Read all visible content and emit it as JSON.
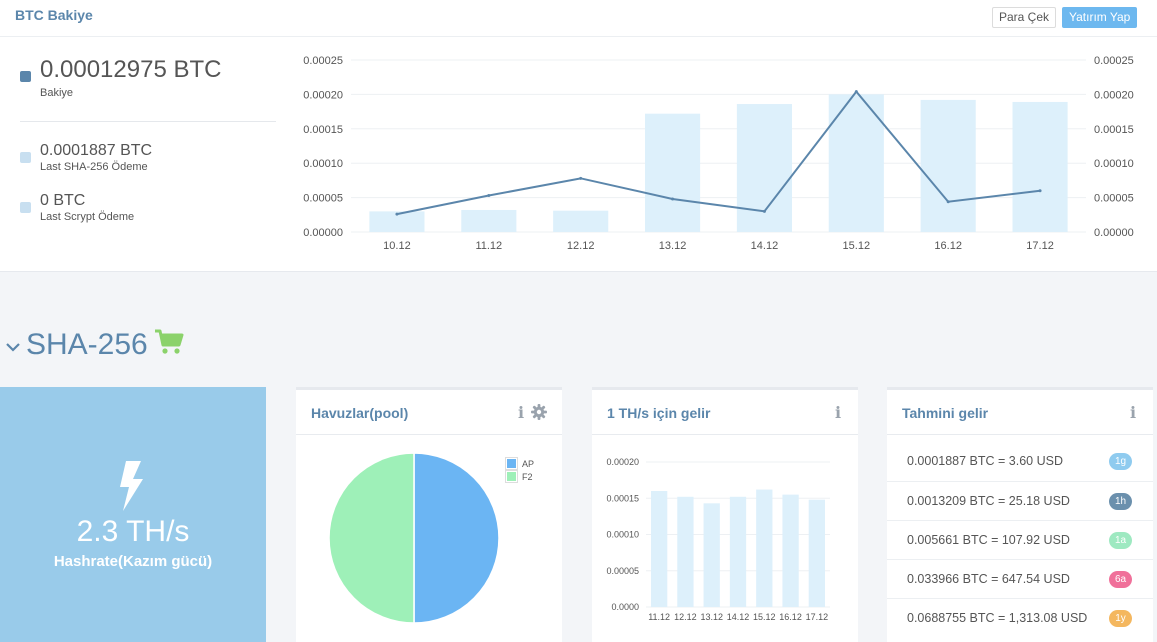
{
  "balance_panel": {
    "title": "BTC Bakiye",
    "withdraw_label": "Para Çek",
    "deposit_label": "Yatırım Yap",
    "balance": {
      "value": "0.00012975 BTC",
      "label": "Bakiye"
    },
    "last_sha256": {
      "value": "0.0001887 BTC",
      "label": "Last SHA-256 Ödeme"
    },
    "last_scrypt": {
      "value": "0 BTC",
      "label": "Last Scrypt Ödeme"
    }
  },
  "chart_data": [
    {
      "type": "bar+line",
      "categories": [
        "10.12",
        "11.12",
        "12.12",
        "13.12",
        "14.12",
        "15.12",
        "16.12",
        "17.12"
      ],
      "series": [
        {
          "type": "bar",
          "values": [
            3e-05,
            3.2e-05,
            3.1e-05,
            0.000172,
            0.000186,
            0.0002,
            0.000192,
            0.000189
          ]
        },
        {
          "type": "line",
          "values": [
            2.6e-05,
            5.3e-05,
            7.8e-05,
            4.8e-05,
            3e-05,
            0.000204,
            4.4e-05,
            6e-05
          ]
        }
      ],
      "yticks": [
        "0.00000",
        "0.00005",
        "0.00010",
        "0.00015",
        "0.00020",
        "0.00025"
      ],
      "ylim": [
        0,
        0.00025
      ],
      "dual_y_axis": true,
      "grid": true,
      "colors": {
        "bar": "#ddf0fb",
        "line": "#5b86ab"
      }
    },
    {
      "type": "pie",
      "series": [
        {
          "name": "AP",
          "value": 50,
          "color": "#6bb5f3"
        },
        {
          "name": "F2",
          "value": 50,
          "color": "#9ef0b8"
        }
      ],
      "legend": "top-right"
    },
    {
      "type": "bar",
      "categories": [
        "11.12",
        "12.12",
        "13.12",
        "14.12",
        "15.12",
        "16.12",
        "17.12"
      ],
      "values": [
        0.00016,
        0.000152,
        0.000143,
        0.000152,
        0.000162,
        0.000155,
        0.000148
      ],
      "yticks": [
        "0.0000",
        "0.00005",
        "0.00010",
        "0.00015",
        "0.00020"
      ],
      "ylim": [
        0,
        0.0002
      ],
      "grid": true,
      "colors": {
        "bar": "#ddf0fb"
      }
    }
  ],
  "section": {
    "title": "SHA-256",
    "chevron_icon": "chevron-down-icon",
    "cart_icon": "cart-icon",
    "cart_color": "#8bd26b"
  },
  "hashrate": {
    "value": "2.3 TH/s",
    "label": "Hashrate(Kazım gücü)",
    "icon": "lightning-bolt-icon"
  },
  "pool_card": {
    "title": "Havuzlar(pool)"
  },
  "income_card": {
    "title": "1 TH/s için gelir"
  },
  "estimate_card": {
    "title": "Tahmini gelir",
    "rows": [
      {
        "text": "0.0001887 BTC = 3.60 USD",
        "badge": "1g",
        "color": "#8fcbef"
      },
      {
        "text": "0.0013209 BTC = 25.18 USD",
        "badge": "1h",
        "color": "#6b90ad"
      },
      {
        "text": "0.005661 BTC = 107.92 USD",
        "badge": "1a",
        "color": "#9ee9c1"
      },
      {
        "text": "0.033966 BTC = 647.54 USD",
        "badge": "6a",
        "color": "#f0709a"
      },
      {
        "text": "0.0688755 BTC = 1,313.08 USD",
        "badge": "1y",
        "color": "#f4b75f"
      }
    ]
  },
  "info_icon_text": "i"
}
